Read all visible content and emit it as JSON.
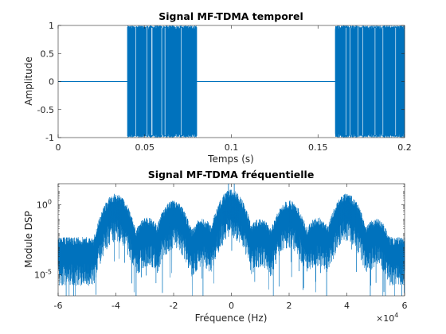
{
  "chart_data": [
    {
      "type": "line",
      "title": "Signal MF-TDMA temporel",
      "xlabel": "Temps (s)",
      "ylabel": "Amplitude",
      "xlim": [
        0,
        0.2
      ],
      "ylim": [
        -1,
        1
      ],
      "xticks": [
        0,
        0.05,
        0.1,
        0.15,
        0.2
      ],
      "xtick_labels": [
        "0",
        "0.05",
        "0.1",
        "0.15",
        "0.2"
      ],
      "yticks": [
        -1,
        -0.5,
        0,
        0.5,
        1
      ],
      "ytick_labels": [
        "-1",
        "-0.5",
        "0",
        "0.5",
        "1"
      ],
      "grid": false,
      "color": "#0072BD",
      "segments": [
        {
          "x": [
            0,
            0.04
          ],
          "amplitude": 0
        },
        {
          "x": [
            0.04,
            0.08
          ],
          "amplitude": 1
        },
        {
          "x": [
            0.08,
            0.16
          ],
          "amplitude": 0
        },
        {
          "x": [
            0.16,
            0.2
          ],
          "amplitude": 1
        }
      ]
    },
    {
      "type": "line",
      "title": "Signal MF-TDMA fréquentielle",
      "xlabel": "Fréquence (Hz)",
      "ylabel": "Module DSP",
      "x_scale_exponent": "×10^4",
      "x_scale_base": "×10",
      "x_scale_power": "4",
      "xlim": [
        -6,
        6
      ],
      "yscale": "log",
      "ylim_log10": [
        -6.5,
        1.5
      ],
      "xticks": [
        -6,
        -4,
        -2,
        0,
        2,
        4,
        6
      ],
      "xtick_labels": [
        "-6",
        "-4",
        "-2",
        "0",
        "2",
        "4",
        "6"
      ],
      "yticks_log10": [
        0,
        -5
      ],
      "ytick_base": "10",
      "ytick_powers": [
        "0",
        "-5"
      ],
      "grid": false,
      "color": "#0072BD",
      "lobe_peaks_log10": [
        {
          "x": -4,
          "level": -0.1
        },
        {
          "x": -2.9,
          "level": -1.8
        },
        {
          "x": -2,
          "level": -0.6
        },
        {
          "x": -1,
          "level": -1.9
        },
        {
          "x": 0,
          "level": 0.2
        },
        {
          "x": 1,
          "level": -1.9
        },
        {
          "x": 2,
          "level": -0.6
        },
        {
          "x": 3,
          "level": -1.8
        },
        {
          "x": 4,
          "level": -0.1
        },
        {
          "x": 5,
          "level": -1.9
        }
      ]
    }
  ]
}
